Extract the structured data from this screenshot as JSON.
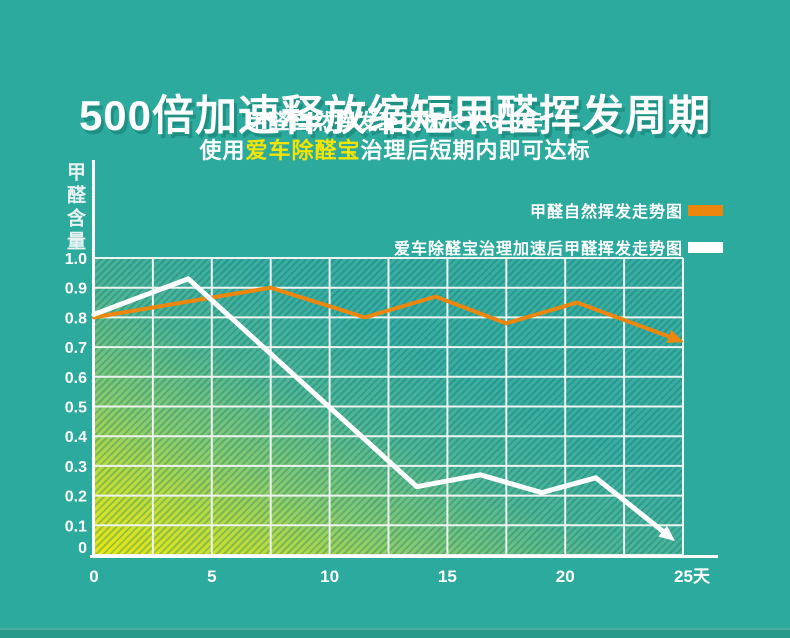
{
  "page": {
    "bg_color": "#2CAA9E",
    "footer_color": "#28998D"
  },
  "header": {
    "title": "500倍加速释放缩短甲醛挥发周期",
    "subtitle_line1": "甲醛自然挥发至达标长达6-8年",
    "subtitle_line2_prefix": "使用",
    "subtitle_line2_highlight": "爱车除醛宝",
    "subtitle_line2_suffix": "治理后短期内即可达标",
    "highlight_color": "#F4E403"
  },
  "legend": {
    "items": [
      {
        "label": "甲醛自然挥发走势图",
        "swatch_color": "#EC860D"
      },
      {
        "label": "爱车除醛宝治理加速后甲醛挥发走势图",
        "swatch_color": "#FFFFFF"
      }
    ]
  },
  "chart_data": {
    "type": "line",
    "title": "500倍加速释放缩短甲醛挥发周期",
    "xlabel": "天",
    "ylabel": "甲醛含量",
    "xlim": [
      0,
      25
    ],
    "ylim": [
      0,
      1.0
    ],
    "grid": true,
    "grid_x_step": 2.5,
    "grid_y_step": 0.1,
    "x_ticks": [
      0,
      5,
      10,
      15,
      20,
      25
    ],
    "x_tick_labels": [
      "0",
      "5",
      "10",
      "15",
      "20",
      "25天"
    ],
    "y_ticks": [
      1.0,
      0.9,
      0.8,
      0.7,
      0.6,
      0.5,
      0.4,
      0.3,
      0.2,
      0.1,
      0
    ],
    "y_tick_labels": [
      "1.0",
      "0.9",
      "0.8",
      "0.7",
      "0.6",
      "0.5",
      "0.4",
      "0.3",
      "0.2",
      "0.1",
      "0"
    ],
    "series": [
      {
        "name": "甲醛自然挥发走势图",
        "color": "#EC860D",
        "arrow_end": true,
        "points": [
          [
            0,
            0.8
          ],
          [
            7.5,
            0.9
          ],
          [
            11.5,
            0.8
          ],
          [
            14.5,
            0.87
          ],
          [
            17.5,
            0.78
          ],
          [
            20.5,
            0.85
          ],
          [
            24.6,
            0.73
          ]
        ]
      },
      {
        "name": "爱车除醛宝治理加速后甲醛挥发走势图",
        "color": "#FFFFFF",
        "arrow_end": true,
        "points": [
          [
            0,
            0.81
          ],
          [
            4,
            0.93
          ],
          [
            13.7,
            0.23
          ],
          [
            16.4,
            0.27
          ],
          [
            19,
            0.21
          ],
          [
            21.3,
            0.26
          ],
          [
            24.3,
            0.07
          ]
        ]
      }
    ]
  }
}
